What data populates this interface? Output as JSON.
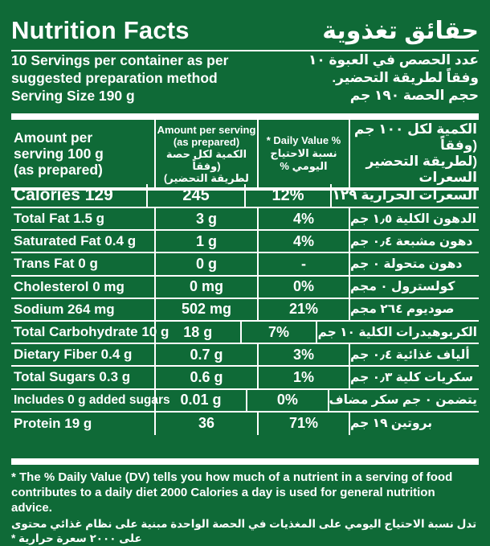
{
  "title": {
    "en": "Nutrition Facts",
    "ar": "حقائق تغذوية"
  },
  "servings": {
    "en_line1": "10 Servings per container as per",
    "en_line2": "suggested preparation method",
    "en_line3": "Serving Size 190 g",
    "ar_line1": "عدد الحصص في العبوة ١٠",
    "ar_line2": "وفقاً لطريقة التحضير.",
    "ar_line3": "حجم الحصة ١٩٠ جم"
  },
  "header": {
    "amount_en_1": "Amount per",
    "amount_en_2": "serving 100 g",
    "amount_en_3": "(as prepared)",
    "per_serving_1": "Amount per serving",
    "per_serving_2": "(as prepared)",
    "per_serving_3": "الكمية لكل حصة (وفقاً",
    "per_serving_4": "لطريقة التحضير)",
    "dv_1": "* Daily Value %",
    "dv_2": "نسبة الاحتياج",
    "dv_3": "% اليومي",
    "ar_1": "الكمية لكل ١٠٠ جم (وفقاً",
    "ar_2": "(لطريقة التحضير",
    "ar_3": "السعرات"
  },
  "rows": [
    {
      "en": "Calories 129",
      "serving": "245",
      "dv": "12%",
      "ar": "السعرات الحرارية ١٢٩"
    },
    {
      "en": "Total Fat 1.5 g",
      "serving": "3 g",
      "dv": "4%",
      "ar": "الدهون الكلية ١٫٥ جم"
    },
    {
      "en": "Saturated Fat 0.4 g",
      "serving": "1 g",
      "dv": "4%",
      "ar": "دهون مشبعة ٠٫٤ جم"
    },
    {
      "en": "Trans Fat 0 g",
      "serving": "0 g",
      "dv": "-",
      "ar": "دهون متحولة ٠ جم"
    },
    {
      "en": "Cholesterol 0 mg",
      "serving": "0 mg",
      "dv": "0%",
      "ar": "كولسترول ٠ مجم"
    },
    {
      "en": "Sodium 264 mg",
      "serving": "502 mg",
      "dv": "21%",
      "ar": "صوديوم ٢٦٤ مجم"
    },
    {
      "en": "Total Carbohydrate 10 g",
      "serving": "18 g",
      "dv": "7%",
      "ar": "الكربوهيدرات الكلية ١٠ جم"
    },
    {
      "en": "Dietary Fiber 0.4 g",
      "serving": "0.7 g",
      "dv": "3%",
      "ar": "ألياف غذائية ٠٫٤ جم"
    },
    {
      "en": "Total Sugars 0.3 g",
      "serving": "0.6 g",
      "dv": "1%",
      "ar": "سكريات كلية ٠٫٣ جم"
    },
    {
      "en": "Includes 0 g added sugars",
      "serving": "0.01 g",
      "dv": "0%",
      "ar": "يتضمن ٠ جم سكر مضاف"
    },
    {
      "en": "Protein 19 g",
      "serving": "36",
      "dv": "71%",
      "ar": "بروتين ١٩ جم"
    }
  ],
  "footnote": {
    "en_1": "* The % Daily Value (DV) tells you how much of a nutrient in a serving of food",
    "en_2": "contributes to a daily diet 2000 Calories a day is used for general nutrition advice.",
    "ar": "تدل نسبة الاحتياج اليومي على المغذيات في الحصة الواحدة مبنية على نظام غذائي محتوى على ٢٠٠٠ سعرة حرارية *"
  },
  "colors": {
    "background": "#0f6a37",
    "text": "#ffffff"
  }
}
